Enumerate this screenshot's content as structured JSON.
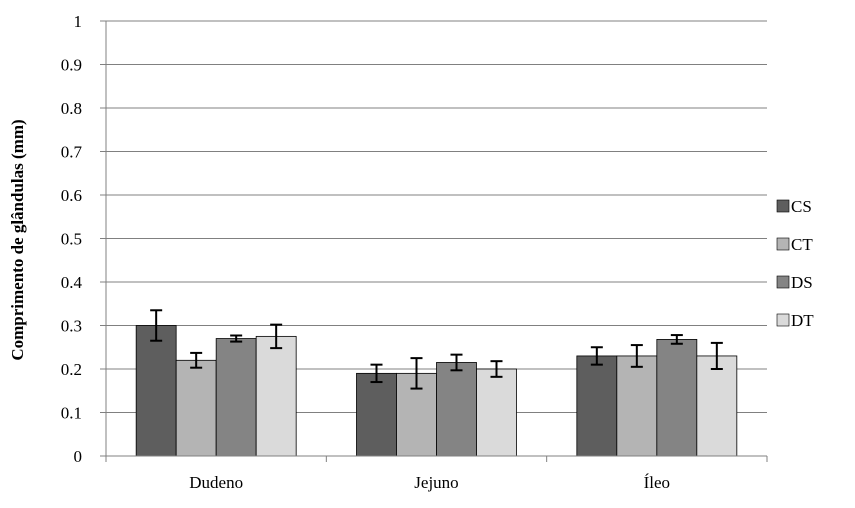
{
  "chart_data": {
    "type": "bar",
    "ylabel": "Comprimento de glândulas (mm)",
    "xlabel": "",
    "ylim": [
      0,
      1
    ],
    "yticks": [
      "0",
      "0.1",
      "0.2",
      "0.3",
      "0.4",
      "0.5",
      "0.6",
      "0.7",
      "0.8",
      "0.9",
      "1"
    ],
    "grid": true,
    "legend_position": "right",
    "categories": [
      "Dudeno",
      "Jejuno",
      "Íleo"
    ],
    "series": [
      {
        "name": "CS",
        "color": "#5e5e5e",
        "values": [
          0.3,
          0.19,
          0.23
        ],
        "errors": [
          0.035,
          0.02,
          0.02
        ]
      },
      {
        "name": "CT",
        "color": "#b4b4b4",
        "values": [
          0.22,
          0.19,
          0.23
        ],
        "errors": [
          0.017,
          0.035,
          0.025
        ]
      },
      {
        "name": "DS",
        "color": "#848484",
        "values": [
          0.27,
          0.215,
          0.268
        ],
        "errors": [
          0.007,
          0.018,
          0.01
        ]
      },
      {
        "name": "DT",
        "color": "#dadada",
        "values": [
          0.275,
          0.2,
          0.23
        ],
        "errors": [
          0.027,
          0.018,
          0.03
        ]
      }
    ]
  }
}
